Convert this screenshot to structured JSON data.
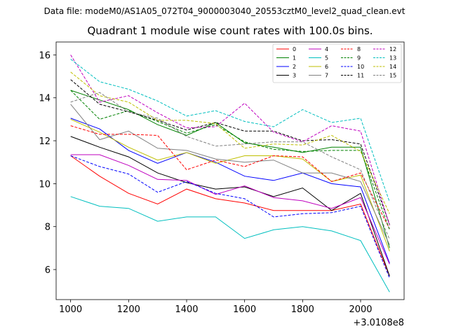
{
  "header": {
    "data_file": "Data file: modeM0/AS1A05_072T04_9000003040_20553cztM0_level2_quad_clean.evt"
  },
  "chart_data": {
    "type": "line",
    "title": "Quadrant 1 module wise count rates with 100.0s bins.",
    "xlabel": "",
    "ylabel": "",
    "x_offset_label": "+3.0108e8",
    "x": [
      1000,
      1100,
      1200,
      1300,
      1400,
      1500,
      1600,
      1700,
      1800,
      1900,
      2000,
      2100
    ],
    "xlim": [
      950,
      2150
    ],
    "ylim": [
      4.6,
      16.6
    ],
    "x_ticks": [
      1000,
      1200,
      1400,
      1600,
      1800,
      2000
    ],
    "y_ticks": [
      6,
      8,
      10,
      12,
      14,
      16
    ],
    "legend_position": "top-right",
    "series": [
      {
        "name": "0",
        "color": "#ff0000",
        "dash": "solid",
        "values": [
          11.3,
          10.35,
          9.55,
          9.05,
          9.75,
          9.3,
          9.1,
          8.75,
          8.75,
          8.75,
          9.05,
          5.7
        ]
      },
      {
        "name": "1",
        "color": "#008000",
        "dash": "solid",
        "values": [
          14.35,
          13.9,
          13.45,
          12.75,
          12.25,
          12.85,
          11.9,
          11.7,
          11.45,
          11.7,
          11.7,
          7.0
        ]
      },
      {
        "name": "2",
        "color": "#0000ff",
        "dash": "solid",
        "values": [
          13.05,
          12.55,
          11.55,
          10.95,
          11.45,
          11.0,
          10.35,
          10.15,
          10.5,
          10.0,
          9.85,
          6.3
        ]
      },
      {
        "name": "3",
        "color": "#000000",
        "dash": "solid",
        "values": [
          12.2,
          11.7,
          11.25,
          10.5,
          10.05,
          9.75,
          9.85,
          9.4,
          9.8,
          8.75,
          9.55,
          5.7
        ]
      },
      {
        "name": "4",
        "color": "#bf00bf",
        "dash": "solid",
        "values": [
          11.35,
          11.35,
          10.85,
          10.2,
          10.15,
          9.5,
          9.9,
          9.35,
          9.2,
          8.85,
          9.35,
          6.25
        ]
      },
      {
        "name": "5",
        "color": "#00bfbf",
        "dash": "solid",
        "values": [
          9.4,
          8.95,
          8.85,
          8.25,
          8.45,
          8.45,
          7.45,
          7.85,
          8.0,
          7.8,
          7.35,
          4.95
        ]
      },
      {
        "name": "6",
        "color": "#bfbf00",
        "dash": "solid",
        "values": [
          13.0,
          12.4,
          11.7,
          11.1,
          11.45,
          10.95,
          11.3,
          11.3,
          11.15,
          10.1,
          10.4,
          6.85
        ]
      },
      {
        "name": "7",
        "color": "#808080",
        "dash": "solid",
        "values": [
          13.7,
          12.05,
          12.45,
          11.65,
          11.55,
          11.15,
          11.0,
          11.1,
          10.5,
          10.5,
          10.1,
          7.15
        ]
      },
      {
        "name": "8",
        "color": "#ff0000",
        "dash": "dashed",
        "values": [
          12.7,
          12.3,
          12.3,
          12.25,
          10.65,
          11.1,
          10.8,
          11.3,
          11.25,
          10.1,
          10.5,
          7.9
        ]
      },
      {
        "name": "9",
        "color": "#008000",
        "dash": "dashed",
        "values": [
          14.35,
          13.0,
          13.4,
          12.9,
          12.35,
          12.75,
          11.95,
          11.6,
          11.5,
          11.55,
          11.55,
          7.85
        ]
      },
      {
        "name": "10",
        "color": "#0000ff",
        "dash": "dashed",
        "values": [
          11.3,
          10.8,
          10.45,
          9.6,
          10.1,
          9.55,
          9.3,
          8.45,
          8.6,
          8.65,
          8.95,
          5.6
        ]
      },
      {
        "name": "11",
        "color": "#000000",
        "dash": "dashed",
        "values": [
          14.85,
          13.7,
          13.35,
          12.95,
          12.5,
          12.85,
          12.45,
          12.45,
          12.0,
          12.05,
          11.85,
          8.1
        ]
      },
      {
        "name": "12",
        "color": "#bf00bf",
        "dash": "dashed",
        "values": [
          16.0,
          13.8,
          14.1,
          13.3,
          12.6,
          12.65,
          13.75,
          12.4,
          11.95,
          12.7,
          12.45,
          8.05
        ]
      },
      {
        "name": "13",
        "color": "#00bfbf",
        "dash": "dashed",
        "values": [
          15.8,
          14.75,
          14.4,
          13.85,
          13.15,
          13.4,
          12.9,
          12.65,
          13.45,
          12.85,
          13.05,
          9.15
        ]
      },
      {
        "name": "14",
        "color": "#bfbf00",
        "dash": "dashed",
        "values": [
          15.2,
          14.1,
          13.8,
          12.95,
          12.95,
          12.8,
          11.65,
          11.85,
          11.8,
          12.25,
          11.5,
          8.6
        ]
      },
      {
        "name": "15",
        "color": "#808080",
        "dash": "dashed",
        "values": [
          13.8,
          14.25,
          13.35,
          13.05,
          12.2,
          11.75,
          11.85,
          11.95,
          11.95,
          11.25,
          10.65,
          7.4
        ]
      }
    ]
  }
}
